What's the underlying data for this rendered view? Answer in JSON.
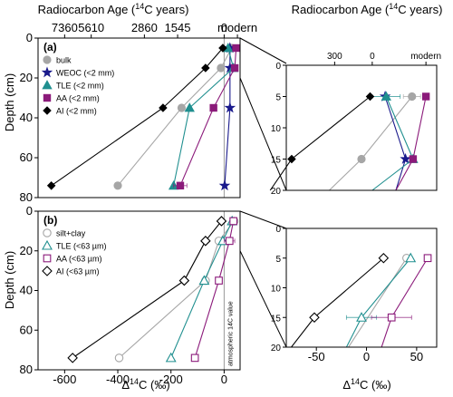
{
  "colors": {
    "bulk": "#a6a6a6",
    "WEOC": "#1a1a8c",
    "TLE": "#1f8f8f",
    "AA": "#8b1a7a",
    "AI": "#000000",
    "zero_line": "#9a9a9a",
    "connector": "#000000"
  },
  "chart_data": [
    {
      "panel": "(a)",
      "type": "scatter",
      "title": "",
      "top_axis_label": "Radiocarbon Age (14C years)",
      "top_ticks": [
        "7360",
        "5610",
        "2860",
        "1545",
        "0",
        "modern"
      ],
      "top_tick_d14c": [
        -600,
        -500,
        -300,
        -175,
        0,
        50
      ],
      "xlabel": "",
      "ylabel": "Depth (cm)",
      "xlim": [
        -700,
        60
      ],
      "ylim": [
        80,
        0
      ],
      "yticks": [
        0,
        20,
        40,
        60,
        80
      ],
      "zero_line": 0,
      "legend": {
        "position": "top-left",
        "entries": [
          "bulk",
          "WEOC (<2 mm)",
          "TLE (<2 mm)",
          "AA (<2 mm)",
          "AI (<2 mm)"
        ]
      },
      "series": [
        {
          "name": "bulk",
          "key": "bulk",
          "marker": "circle",
          "filled": true,
          "points": [
            {
              "x": 28,
              "y": 5
            },
            {
              "x": -12,
              "y": 15
            },
            {
              "x": -160,
              "y": 35
            },
            {
              "x": -400,
              "y": 74
            }
          ]
        },
        {
          "name": "WEOC (<2 mm)",
          "key": "WEOC",
          "marker": "star",
          "filled": true,
          "points": [
            {
              "x": 22,
              "y": 5
            },
            {
              "x": 22,
              "y": 15
            },
            {
              "x": 22,
              "y": 35
            },
            {
              "x": 2,
              "y": 74
            }
          ]
        },
        {
          "name": "TLE (<2 mm)",
          "key": "TLE",
          "marker": "triangle",
          "filled": true,
          "points": [
            {
              "x": 15,
              "y": 5
            },
            {
              "x": 35,
              "y": 15
            },
            {
              "x": -130,
              "y": 35
            },
            {
              "x": -190,
              "y": 74
            }
          ]
        },
        {
          "name": "AA (<2 mm)",
          "key": "AA",
          "marker": "square",
          "filled": true,
          "points": [
            {
              "x": 45,
              "y": 5
            },
            {
              "x": 40,
              "y": 15
            },
            {
              "x": -40,
              "y": 35
            },
            {
              "x": -165,
              "y": 74
            }
          ],
          "xerr": [
            0,
            0,
            0,
            25
          ]
        },
        {
          "name": "AI (<2 mm)",
          "key": "AI",
          "marker": "diamond",
          "filled": true,
          "points": [
            {
              "x": -5,
              "y": 5
            },
            {
              "x": -70,
              "y": 15
            },
            {
              "x": -230,
              "y": 35
            },
            {
              "x": -650,
              "y": 74
            }
          ]
        }
      ]
    },
    {
      "panel": "(b)",
      "type": "scatter",
      "xlabel": "Δ14C (‰)",
      "ylabel": "Depth (cm)",
      "xlim": [
        -700,
        60
      ],
      "ylim": [
        80,
        0
      ],
      "xticks": [
        -600,
        -400,
        -200,
        0
      ],
      "yticks": [
        0,
        20,
        40,
        60,
        80
      ],
      "zero_line": 0,
      "zero_line_label": "atmospheric 14C value",
      "legend": {
        "position": "top-left",
        "entries": [
          "silt+clay",
          "TLE (<63 µm)",
          "AA (<63 µm)",
          "AI (<63 µm)"
        ]
      },
      "series": [
        {
          "name": "silt+clay",
          "key": "bulk",
          "marker": "circle",
          "filled": false,
          "points": [
            {
              "x": 38,
              "y": 5
            },
            {
              "x": -20,
              "y": 15
            },
            {
              "x": -70,
              "y": 35
            },
            {
              "x": -395,
              "y": 74
            }
          ]
        },
        {
          "name": "TLE (<63 µm)",
          "key": "TLE",
          "marker": "triangle",
          "filled": false,
          "points": [
            {
              "x": 30,
              "y": 5
            },
            {
              "x": -5,
              "y": 15
            },
            {
              "x": -75,
              "y": 35
            },
            {
              "x": -200,
              "y": 74
            }
          ]
        },
        {
          "name": "AA (<63 µm)",
          "key": "AA",
          "marker": "square",
          "filled": false,
          "points": [
            {
              "x": 35,
              "y": 5
            },
            {
              "x": 20,
              "y": 15
            },
            {
              "x": -20,
              "y": 35
            },
            {
              "x": -110,
              "y": 74
            }
          ],
          "xerr": [
            0,
            20,
            0,
            0
          ]
        },
        {
          "name": "AI (<63 µm)",
          "key": "AI",
          "marker": "diamond",
          "filled": false,
          "points": [
            {
              "x": -10,
              "y": 5
            },
            {
              "x": -70,
              "y": 15
            },
            {
              "x": -150,
              "y": 35
            },
            {
              "x": -570,
              "y": 74
            }
          ]
        }
      ]
    },
    {
      "panel": "inset-a",
      "type": "scatter",
      "top_axis_label": "Radiocarbon Age (14C years)",
      "top_ticks": [
        "300",
        "0",
        "modern"
      ],
      "top_tick_d14c": [
        -35,
        0,
        50
      ],
      "xlim": [
        -80,
        60
      ],
      "ylim": [
        20,
        0
      ],
      "yticks": [
        0,
        5,
        10,
        15,
        20
      ],
      "series": [
        {
          "key": "bulk",
          "marker": "circle",
          "filled": true,
          "points": [
            {
              "x": 37,
              "y": 5
            },
            {
              "x": -10,
              "y": 15
            }
          ],
          "xerr": [
            8,
            0
          ],
          "to_edge": {
            "x": -40,
            "y": 20
          }
        },
        {
          "key": "WEOC",
          "marker": "star",
          "filled": true,
          "points": [
            {
              "x": 12,
              "y": 5
            },
            {
              "x": 31,
              "y": 15
            }
          ],
          "to_edge": {
            "x": 22,
            "y": 20
          }
        },
        {
          "key": "TLE",
          "marker": "triangle",
          "filled": true,
          "points": [
            {
              "x": 13,
              "y": 5
            },
            {
              "x": 38,
              "y": 15
            }
          ],
          "xerr": [
            13,
            0
          ],
          "to_edge": {
            "x": 0,
            "y": 20
          }
        },
        {
          "key": "AA",
          "marker": "square",
          "filled": true,
          "points": [
            {
              "x": 50,
              "y": 5
            },
            {
              "x": 38,
              "y": 15
            }
          ],
          "xerr": [
            0,
            0
          ],
          "to_edge": {
            "x": 22,
            "y": 20
          }
        },
        {
          "key": "AI",
          "marker": "diamond",
          "filled": true,
          "points": [
            {
              "x": -2,
              "y": 5
            },
            {
              "x": -75,
              "y": 15
            }
          ],
          "to_edge": {
            "x": -95,
            "y": 20
          }
        }
      ]
    },
    {
      "panel": "inset-b",
      "type": "scatter",
      "xlabel": "Δ14C (‰)",
      "xlim": [
        -80,
        70
      ],
      "ylim": [
        20,
        0
      ],
      "xticks": [
        -50,
        0,
        50
      ],
      "yticks": [
        0,
        5,
        10,
        15,
        20
      ],
      "series": [
        {
          "key": "bulk",
          "marker": "circle",
          "filled": false,
          "points": [
            {
              "x": 40,
              "y": 5
            }
          ],
          "to_edge": {
            "x": -18,
            "y": 20
          }
        },
        {
          "key": "TLE",
          "marker": "triangle",
          "filled": false,
          "points": [
            {
              "x": 44,
              "y": 5
            },
            {
              "x": -5,
              "y": 15
            }
          ],
          "xerr": [
            0,
            15
          ],
          "to_edge": {
            "x": -20,
            "y": 20
          }
        },
        {
          "key": "AA",
          "marker": "square",
          "filled": false,
          "points": [
            {
              "x": 61,
              "y": 5
            },
            {
              "x": 25,
              "y": 15
            }
          ],
          "xerr": [
            0,
            20
          ],
          "to_edge": {
            "x": 15,
            "y": 20
          }
        },
        {
          "key": "AI",
          "marker": "diamond",
          "filled": false,
          "points": [
            {
              "x": 17,
              "y": 5
            },
            {
              "x": -52,
              "y": 15
            }
          ],
          "to_edge": {
            "x": -75,
            "y": 20
          }
        }
      ]
    }
  ]
}
